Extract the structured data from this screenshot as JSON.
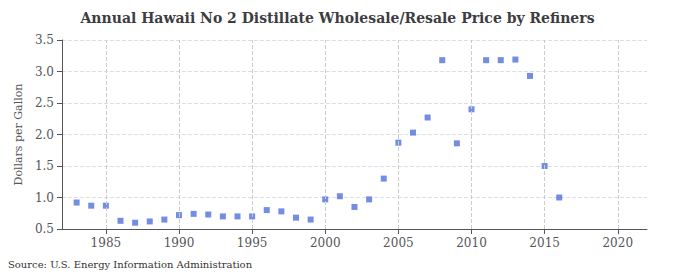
{
  "chart_data": {
    "type": "scatter",
    "title": "Annual Hawaii No 2 Distillate Wholesale/Resale Price by Refiners",
    "ylabel": "Dollars per Gallon",
    "source": "Source: U.S. Energy Information Administration",
    "marker": "square",
    "x": [
      1983,
      1984,
      1985,
      1986,
      1987,
      1988,
      1989,
      1990,
      1991,
      1992,
      1993,
      1994,
      1995,
      1996,
      1997,
      1998,
      1999,
      2000,
      2001,
      2002,
      2003,
      2004,
      2005,
      2006,
      2007,
      2008,
      2009,
      2010,
      2011,
      2012,
      2013,
      2014,
      2015,
      2016
    ],
    "values": [
      0.92,
      0.87,
      0.87,
      0.63,
      0.6,
      0.62,
      0.65,
      0.72,
      0.74,
      0.73,
      0.7,
      0.7,
      0.7,
      0.8,
      0.78,
      0.68,
      0.65,
      0.97,
      1.02,
      0.85,
      0.97,
      1.3,
      1.87,
      2.03,
      2.27,
      3.18,
      1.86,
      2.4,
      3.18,
      3.18,
      3.19,
      2.93,
      1.5,
      1.0
    ],
    "xlim": [
      1982,
      2022
    ],
    "xticks": [
      1985,
      1990,
      1995,
      2000,
      2005,
      2010,
      2015,
      2020
    ],
    "ylim": [
      0.5,
      3.5
    ],
    "yticks": [
      0.5,
      {
        "value": 1,
        "label": "1.0"
      },
      1.5,
      {
        "value": 2,
        "label": "2.0"
      },
      2.5,
      {
        "value": 3,
        "label": "3.0"
      },
      3.5
    ],
    "grid": true
  }
}
